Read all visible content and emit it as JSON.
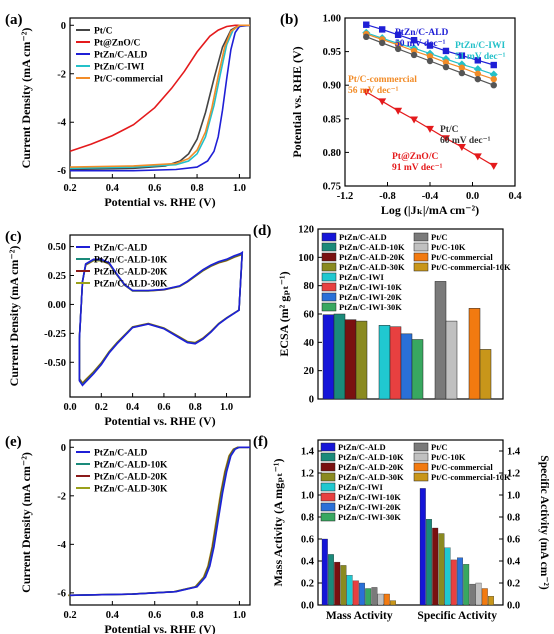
{
  "chart_data": [
    {
      "panel": "(a)",
      "type": "line",
      "xlabel": "Potential vs. RHE (V)",
      "ylabel": "Current Density (mA cm⁻²)",
      "xlim": [
        0.2,
        1.05
      ],
      "ylim": [
        -6.3,
        0.3
      ],
      "xticks": [
        "0.2",
        "0.4",
        "0.6",
        "0.8",
        "1.0"
      ],
      "yticks": [
        "0",
        "-2",
        "-4",
        "-6"
      ],
      "xtick_values": [
        0.2,
        0.4,
        0.6,
        0.8,
        1.0
      ],
      "ytick_values": [
        0,
        -2,
        -4,
        -6
      ],
      "legend_position": "top-left",
      "series": [
        {
          "name": "Pt/C",
          "color": "#444444",
          "x": [
            0.2,
            0.5,
            0.65,
            0.72,
            0.76,
            0.8,
            0.84,
            0.88,
            0.92,
            0.96,
            1.0,
            1.05
          ],
          "y": [
            -5.95,
            -5.9,
            -5.8,
            -5.6,
            -5.3,
            -4.7,
            -3.6,
            -2.2,
            -0.9,
            -0.2,
            0.0,
            0.0
          ]
        },
        {
          "name": "Pt@ZnO/C",
          "color": "#e41a1c",
          "x": [
            0.2,
            0.3,
            0.4,
            0.5,
            0.6,
            0.68,
            0.74,
            0.8,
            0.86,
            0.9,
            0.94,
            0.98,
            1.05
          ],
          "y": [
            -5.2,
            -4.9,
            -4.55,
            -4.1,
            -3.4,
            -2.6,
            -1.9,
            -1.1,
            -0.45,
            -0.2,
            -0.05,
            0.0,
            0.0
          ]
        },
        {
          "name": "PtZn/C-ALD",
          "color": "#1f1fd6",
          "x": [
            0.2,
            0.5,
            0.7,
            0.8,
            0.85,
            0.88,
            0.9,
            0.92,
            0.94,
            0.96,
            0.98,
            1.0,
            1.05
          ],
          "y": [
            -6.0,
            -6.0,
            -5.95,
            -5.85,
            -5.6,
            -5.2,
            -4.6,
            -3.5,
            -2.2,
            -1.0,
            -0.3,
            -0.05,
            0.0
          ]
        },
        {
          "name": "PtZn/C-IWI",
          "color": "#24c1c9",
          "x": [
            0.2,
            0.5,
            0.7,
            0.76,
            0.8,
            0.84,
            0.88,
            0.91,
            0.94,
            0.97,
            1.0,
            1.05
          ],
          "y": [
            -5.9,
            -5.85,
            -5.75,
            -5.6,
            -5.3,
            -4.6,
            -3.3,
            -2.0,
            -0.8,
            -0.2,
            0.0,
            0.0
          ]
        },
        {
          "name": "Pt/C-commercial",
          "color": "#f28c28",
          "x": [
            0.2,
            0.5,
            0.7,
            0.76,
            0.8,
            0.84,
            0.87,
            0.9,
            0.93,
            0.96,
            1.0,
            1.05
          ],
          "y": [
            -5.85,
            -5.8,
            -5.7,
            -5.5,
            -5.15,
            -4.4,
            -3.4,
            -2.1,
            -0.9,
            -0.25,
            0.0,
            0.0
          ]
        }
      ]
    },
    {
      "panel": "(b)",
      "type": "scatter",
      "xlabel": "Log (|Jₖ|/mA cm⁻²)",
      "ylabel": "Potential vs. RHE (V)",
      "xlim": [
        -1.2,
        0.4
      ],
      "ylim": [
        0.75,
        1.0
      ],
      "xticks": [
        "-1.2",
        "-0.8",
        "-0.4",
        "0.0",
        "0.4"
      ],
      "yticks": [
        "0.75",
        "0.80",
        "0.85",
        "0.90",
        "0.95",
        "1.00"
      ],
      "xtick_values": [
        -1.2,
        -0.8,
        -0.4,
        0.0,
        0.4
      ],
      "ytick_values": [
        0.75,
        0.8,
        0.85,
        0.9,
        0.95,
        1.0
      ],
      "series": [
        {
          "name": "PtZn/C-ALD",
          "color": "#1f1fd6",
          "marker": "square",
          "x": [
            -1.0,
            -0.85,
            -0.7,
            -0.55,
            -0.4,
            -0.25,
            -0.1,
            0.05,
            0.2
          ],
          "y": [
            0.99,
            0.983,
            0.975,
            0.967,
            0.959,
            0.951,
            0.944,
            0.937,
            0.93
          ]
        },
        {
          "name": "PtZn/C-IWI",
          "color": "#24c1c9",
          "marker": "diamond",
          "x": [
            -1.0,
            -0.85,
            -0.7,
            -0.55,
            -0.4,
            -0.25,
            -0.1,
            0.05,
            0.2
          ],
          "y": [
            0.978,
            0.97,
            0.962,
            0.955,
            0.947,
            0.939,
            0.931,
            0.924,
            0.916
          ]
        },
        {
          "name": "Pt/C-commercial",
          "color": "#f28c28",
          "marker": "circle",
          "x": [
            -1.0,
            -0.85,
            -0.7,
            -0.55,
            -0.4,
            -0.25,
            -0.1,
            0.05,
            0.2
          ],
          "y": [
            0.976,
            0.968,
            0.96,
            0.951,
            0.943,
            0.934,
            0.926,
            0.917,
            0.909
          ]
        },
        {
          "name": "Pt/C",
          "color": "#555555",
          "marker": "circle",
          "x": [
            -1.0,
            -0.85,
            -0.7,
            -0.55,
            -0.4,
            -0.25,
            -0.1,
            0.05,
            0.2
          ],
          "y": [
            0.972,
            0.963,
            0.954,
            0.945,
            0.936,
            0.927,
            0.918,
            0.909,
            0.9
          ]
        },
        {
          "name": "Pt@ZnO/C",
          "color": "#e41a1c",
          "marker": "triangle-down",
          "x": [
            -1.0,
            -0.85,
            -0.7,
            -0.55,
            -0.4,
            -0.25,
            -0.1,
            0.05,
            0.2
          ],
          "y": [
            0.89,
            0.876,
            0.862,
            0.849,
            0.835,
            0.821,
            0.808,
            0.794,
            0.78
          ]
        }
      ],
      "annotations": [
        {
          "text": "PtZn/C-ALD",
          "text2": "50 mV dec⁻¹",
          "color": "#1f1fd6"
        },
        {
          "text": "PtZn/C-IWI",
          "text2": "51 mV dec⁻¹",
          "color": "#24c1c9"
        },
        {
          "text": "Pt/C-commercial",
          "text2": "56 mV dec⁻¹",
          "color": "#f28c28"
        },
        {
          "text": "Pt/C",
          "text2": "60 mV dec⁻¹",
          "color": "#333333"
        },
        {
          "text": "Pt@ZnO/C",
          "text2": "91 mV dec⁻¹",
          "color": "#e41a1c"
        }
      ]
    },
    {
      "panel": "(c)",
      "type": "line",
      "xlabel": "Potential vs. RHE (V)",
      "ylabel": "Current Density (mA cm⁻²)",
      "xlim": [
        0.0,
        1.15
      ],
      "ylim": [
        -0.8,
        0.6
      ],
      "xticks": [
        "0.0",
        "0.2",
        "0.4",
        "0.6",
        "0.8",
        "1.0"
      ],
      "yticks": [
        "-0.50",
        "-0.25",
        "0.00",
        "0.25",
        "0.50"
      ],
      "xtick_values": [
        0.0,
        0.2,
        0.4,
        0.6,
        0.8,
        1.0
      ],
      "ytick_values": [
        -0.5,
        -0.25,
        0.0,
        0.25,
        0.5
      ],
      "legend_position": "top-left",
      "cv_upper": {
        "x": [
          0.06,
          0.08,
          0.1,
          0.15,
          0.2,
          0.25,
          0.3,
          0.35,
          0.4,
          0.5,
          0.6,
          0.7,
          0.75,
          0.8,
          0.85,
          0.9,
          0.95,
          1.0,
          1.05,
          1.09,
          1.1
        ],
        "y": [
          -0.3,
          0.2,
          0.35,
          0.39,
          0.39,
          0.36,
          0.26,
          0.17,
          0.12,
          0.12,
          0.13,
          0.16,
          0.2,
          0.25,
          0.3,
          0.34,
          0.37,
          0.39,
          0.42,
          0.44,
          0.45
        ]
      },
      "cv_lower": {
        "x": [
          1.1,
          1.08,
          1.0,
          0.95,
          0.9,
          0.85,
          0.8,
          0.75,
          0.7,
          0.6,
          0.5,
          0.4,
          0.3,
          0.25,
          0.2,
          0.15,
          0.1,
          0.08,
          0.06
        ],
        "y": [
          0.45,
          -0.05,
          -0.12,
          -0.17,
          -0.24,
          -0.3,
          -0.34,
          -0.33,
          -0.29,
          -0.21,
          -0.17,
          -0.2,
          -0.34,
          -0.42,
          -0.52,
          -0.6,
          -0.67,
          -0.7,
          -0.66
        ]
      },
      "series": [
        {
          "name": "PtZn/C-ALD",
          "color": "#1f1fd6",
          "scale": 1.0
        },
        {
          "name": "PtZn/C-ALD-10K",
          "color": "#1a8a7a",
          "scale": 0.99
        },
        {
          "name": "PtZn/C-ALD-20K",
          "color": "#8b1a1a",
          "scale": 0.98
        },
        {
          "name": "PtZn/C-ALD-30K",
          "color": "#9aa01a",
          "scale": 0.97
        }
      ]
    },
    {
      "panel": "(d)",
      "type": "bar",
      "ylabel": "ECSA (m² gₚₜ⁻¹)",
      "ylim": [
        0,
        120
      ],
      "yticks": [
        "0",
        "20",
        "40",
        "60",
        "80",
        "100",
        "120"
      ],
      "ytick_values": [
        0,
        20,
        40,
        60,
        80,
        100,
        120
      ],
      "legend_position": "top",
      "groups": [
        {
          "bars": [
            {
              "name": "PtZn/C-ALD",
              "value": 59.5,
              "color": "#1515d8"
            },
            {
              "name": "PtZn/C-ALD-10K",
              "value": 60.0,
              "color": "#1a8a7a"
            },
            {
              "name": "PtZn/C-ALD-20K",
              "value": 56.0,
              "color": "#7a1010"
            },
            {
              "name": "PtZn/C-ALD-30K",
              "value": 55.0,
              "color": "#8a8a20"
            }
          ]
        },
        {
          "bars": [
            {
              "name": "PtZn/C-IWI",
              "value": 52.0,
              "color": "#20c8d0"
            },
            {
              "name": "PtZn/C-IWI-10K",
              "value": 51.0,
              "color": "#e84040"
            },
            {
              "name": "PtZn/C-IWI-20K",
              "value": 46.0,
              "color": "#2a70d8"
            },
            {
              "name": "PtZn/C-IWI-30K",
              "value": 42.0,
              "color": "#38a860"
            }
          ]
        },
        {
          "bars": [
            {
              "name": "Pt/C",
              "value": 83.0,
              "color": "#7a7a7a"
            },
            {
              "name": "Pt/C-10K",
              "value": 55.0,
              "color": "#c0c0c0"
            }
          ]
        },
        {
          "bars": [
            {
              "name": "Pt/C-commercial",
              "value": 64.0,
              "color": "#f27a10"
            },
            {
              "name": "Pt/C-commercial-10K",
              "value": 35.0,
              "color": "#c8961a"
            }
          ]
        }
      ],
      "legend_left": [
        "PtZn/C-ALD",
        "PtZn/C-ALD-10K",
        "PtZn/C-ALD-20K",
        "PtZn/C-ALD-30K",
        "PtZn/C-IWI",
        "PtZn/C-IWI-10K",
        "PtZn/C-IWI-20K",
        "PtZn/C-IWI-30K"
      ],
      "legend_right": [
        "Pt/C",
        "Pt/C-10K",
        "Pt/C-commercial",
        "Pt/C-commercial-10K"
      ],
      "legend_right_labels": [
        "Pt/C",
        "Pt/C-10K",
        "Pt/C-commercial",
        "Pt/C-commercial-10K"
      ]
    },
    {
      "panel": "(e)",
      "type": "line",
      "xlabel": "Potential vs. RHE (V)",
      "ylabel": "Current Density (mA cm⁻²)",
      "xlim": [
        0.2,
        1.05
      ],
      "ylim": [
        -6.5,
        0.3
      ],
      "xticks": [
        "0.2",
        "0.4",
        "0.6",
        "0.8",
        "1.0"
      ],
      "yticks": [
        "0",
        "-2",
        "-4",
        "-6"
      ],
      "xtick_values": [
        0.2,
        0.4,
        0.6,
        0.8,
        1.0
      ],
      "ytick_values": [
        0,
        -2,
        -4,
        -6
      ],
      "legend_position": "top-left",
      "series": [
        {
          "name": "PtZn/C-ALD",
          "color": "#1f1fd6",
          "shift": 0.0
        },
        {
          "name": "PtZn/C-ALD-10K",
          "color": "#1a8a7a",
          "shift": -0.003
        },
        {
          "name": "PtZn/C-ALD-20K",
          "color": "#8b1a1a",
          "shift": -0.006
        },
        {
          "name": "PtZn/C-ALD-30K",
          "color": "#9aa01a",
          "shift": -0.009
        }
      ],
      "base_curve": {
        "x": [
          0.2,
          0.5,
          0.7,
          0.8,
          0.84,
          0.86,
          0.88,
          0.9,
          0.92,
          0.94,
          0.96,
          0.98,
          1.0,
          1.05
        ],
        "y": [
          -6.1,
          -6.05,
          -5.95,
          -5.75,
          -5.35,
          -4.9,
          -4.1,
          -3.0,
          -1.9,
          -1.0,
          -0.35,
          -0.08,
          0.0,
          0.0
        ]
      }
    },
    {
      "panel": "(f)",
      "type": "bar",
      "ylabel": "Mass Activity (A mgₚₜ⁻¹)",
      "ylabel_right": "Specific Activity (mA cm⁻²)",
      "ylim": [
        0,
        1.5
      ],
      "yticks": [
        "0.0",
        "0.2",
        "0.4",
        "0.6",
        "0.8",
        "1.0",
        "1.2",
        "1.4"
      ],
      "ytick_values": [
        0,
        0.2,
        0.4,
        0.6,
        0.8,
        1.0,
        1.2,
        1.4
      ],
      "categories": [
        "Mass Activity",
        "Specific Activity"
      ],
      "series": [
        {
          "name": "PtZn/C-ALD",
          "color": "#1515d8",
          "values": [
            0.6,
            1.06
          ]
        },
        {
          "name": "PtZn/C-ALD-10K",
          "color": "#1a8a7a",
          "values": [
            0.46,
            0.78
          ]
        },
        {
          "name": "PtZn/C-ALD-20K",
          "color": "#7a1010",
          "values": [
            0.39,
            0.7
          ]
        },
        {
          "name": "PtZn/C-ALD-30K",
          "color": "#8a8a20",
          "values": [
            0.36,
            0.65
          ]
        },
        {
          "name": "PtZn/C-IWI",
          "color": "#20c8d0",
          "values": [
            0.27,
            0.52
          ]
        },
        {
          "name": "PtZn/C-IWI-10K",
          "color": "#e84040",
          "values": [
            0.22,
            0.41
          ]
        },
        {
          "name": "PtZn/C-IWI-20K",
          "color": "#2a70d8",
          "values": [
            0.2,
            0.43
          ]
        },
        {
          "name": "PtZn/C-IWI-30K",
          "color": "#38a860",
          "values": [
            0.15,
            0.37
          ]
        },
        {
          "name": "Pt/C",
          "color": "#7a7a7a",
          "values": [
            0.16,
            0.19
          ]
        },
        {
          "name": "Pt/C-10K",
          "color": "#c0c0c0",
          "values": [
            0.1,
            0.2
          ]
        },
        {
          "name": "Pt/C-commercial",
          "color": "#f27a10",
          "values": [
            0.1,
            0.15
          ]
        },
        {
          "name": "Pt/C-commercial-10K",
          "color": "#c8961a",
          "values": [
            0.04,
            0.08
          ]
        }
      ],
      "legend_left": [
        "PtZn/C-ALD",
        "PtZn/C-ALD-10K",
        "PtZn/C-ALD-20K",
        "PtZn/C-ALD-30K",
        "PtZn/C-IWI",
        "PtZn/C-IWI-10K",
        "PtZn/C-IWI-20K",
        "PtZn/C-IWI-30K"
      ],
      "legend_right": [
        "Pt/C",
        "Pt/C-10K",
        "Pt/C-commercial",
        "Pt/C-commercial-10K"
      ]
    }
  ]
}
